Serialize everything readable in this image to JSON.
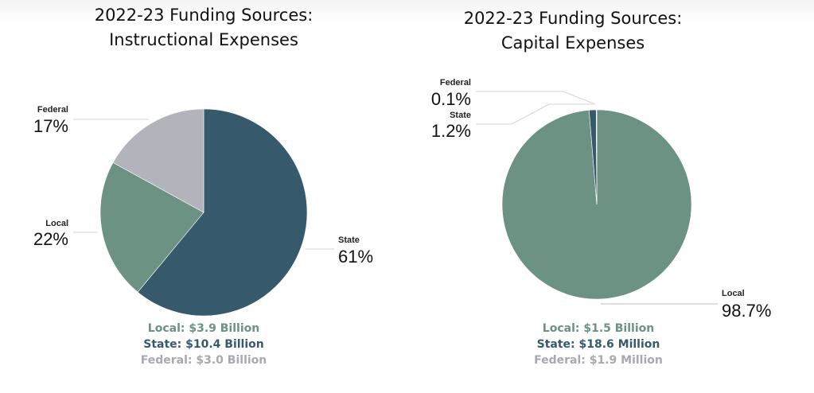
{
  "colors": {
    "local": "#6b9283",
    "state": "#365a6b",
    "federal": "#b3b3bb",
    "leader": "#d4d4d4"
  },
  "chart_data": [
    {
      "type": "pie",
      "title": [
        "2022-23 Funding Sources:",
        "Instructional Expenses"
      ],
      "slices": [
        {
          "key": "state",
          "label": "State",
          "percent_label": "61%",
          "value": 61,
          "color": "#365a6b"
        },
        {
          "key": "local",
          "label": "Local",
          "percent_label": "22%",
          "value": 22,
          "color": "#6b9283"
        },
        {
          "key": "federal",
          "label": "Federal",
          "percent_label": "17%",
          "value": 17,
          "color": "#b3b3bb"
        }
      ],
      "legend": [
        {
          "text": "Local: $3.9 Billion",
          "color": "#6b9283"
        },
        {
          "text": "State: $10.4 Billion",
          "color": "#365a6b"
        },
        {
          "text": "Federal: $3.0 Billion",
          "color": "#a8a8ae"
        }
      ]
    },
    {
      "type": "pie",
      "title": [
        "2022-23 Funding Sources:",
        "Capital Expenses"
      ],
      "slices": [
        {
          "key": "local",
          "label": "Local",
          "percent_label": "98.7%",
          "value": 98.7,
          "color": "#6b9283"
        },
        {
          "key": "state",
          "label": "State",
          "percent_label": "1.2%",
          "value": 1.2,
          "color": "#365a6b"
        },
        {
          "key": "federal",
          "label": "Federal",
          "percent_label": "0.1%",
          "value": 0.1,
          "color": "#b3b3bb"
        }
      ],
      "legend": [
        {
          "text": "Local: $1.5 Billion",
          "color": "#6b9283"
        },
        {
          "text": "State: $18.6 Million",
          "color": "#365a6b"
        },
        {
          "text": "Federal: $1.9 Million",
          "color": "#a8a8ae"
        }
      ]
    }
  ]
}
